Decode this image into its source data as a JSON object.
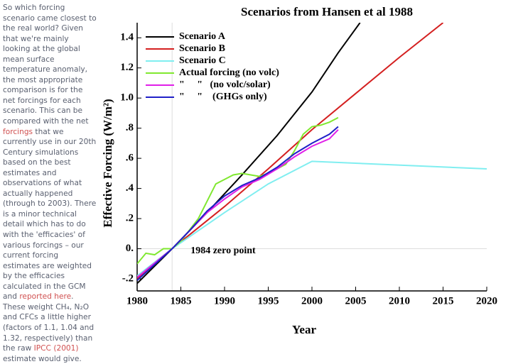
{
  "sidebar": {
    "segments": [
      {
        "text": "So which forcing scenario came closest to the real world? Given that we're mainly looking at the global mean surface temperature anomaly, the most appropriate comparison is for the net forcings for each scenario. This can be compared with the net "
      },
      {
        "text": "forcings",
        "link": true
      },
      {
        "text": " that we currently use in our 20th Century simulations based on the best estimates and observations of what actually happened (through to 2003). There is a minor technical detail which has to do with the 'efficacies' of various forcings – our current forcing estimates are weighted by the efficacies calculated in the GCM and "
      },
      {
        "text": "reported here",
        "link": true
      },
      {
        "text": ". These weight CH₄, N₂O and CFCs a little higher (factors of 1.1, 1.04 and 1.32, respectively) than the raw "
      },
      {
        "text": "IPCC (2001)",
        "link": true
      },
      {
        "text": " estimate would give."
      }
    ]
  },
  "chart_data": {
    "type": "line",
    "title": "Scenarios from Hansen et al 1988",
    "xlabel": "Year",
    "ylabel": "Effective Forcing (W/m²)",
    "xlim": [
      1980,
      2020
    ],
    "xticks": [
      1980,
      1985,
      1990,
      1995,
      2000,
      2005,
      2010,
      2015,
      2020
    ],
    "ylim": [
      -0.28,
      1.5
    ],
    "yticks": [
      {
        "value": -0.2,
        "label": "-.2"
      },
      {
        "value": 0,
        "label": "0."
      },
      {
        "value": 0.2,
        "label": ".2"
      },
      {
        "value": 0.4,
        "label": ".4"
      },
      {
        "value": 0.6,
        "label": ".6"
      },
      {
        "value": 0.8,
        "label": ".8"
      },
      {
        "value": 1.0,
        "label": "1.0"
      },
      1.2,
      1.4
    ],
    "annotation": {
      "text": "1984 zero point",
      "x": 1984
    },
    "legend": "upper left",
    "series": [
      {
        "name": "Scenario A",
        "color": "#000000",
        "x": [
          1980,
          1984,
          1988,
          1992,
          1996,
          2000,
          2003,
          2005.5
        ],
        "values": [
          -0.23,
          0,
          0.24,
          0.49,
          0.75,
          1.04,
          1.3,
          1.5
        ]
      },
      {
        "name": "Scenario B",
        "color": "#d42020",
        "x": [
          1980,
          1984,
          1990,
          1995,
          2000,
          2005,
          2010,
          2015
        ],
        "values": [
          -0.2,
          0,
          0.28,
          0.53,
          0.79,
          1.03,
          1.27,
          1.5
        ]
      },
      {
        "name": "Scenario C",
        "color": "#80eef0",
        "x": [
          1980,
          1984,
          1990,
          1995,
          2000,
          2020
        ],
        "values": [
          -0.18,
          0,
          0.24,
          0.43,
          0.58,
          0.53
        ]
      },
      {
        "name": "Actual forcing (no volc)",
        "color": "#80e830",
        "x": [
          1980,
          1981,
          1982,
          1983,
          1984,
          1985,
          1987,
          1989,
          1990,
          1991,
          1992,
          1993,
          1994,
          1995,
          1996,
          1997,
          1998,
          1999,
          2000,
          2001,
          2002,
          2003
        ],
        "values": [
          -0.1,
          -0.03,
          -0.04,
          0,
          0,
          0.05,
          0.2,
          0.43,
          0.46,
          0.49,
          0.5,
          0.49,
          0.48,
          0.5,
          0.53,
          0.56,
          0.65,
          0.76,
          0.81,
          0.82,
          0.84,
          0.87
        ]
      },
      {
        "name": "\"     \"   (no volc/solar)",
        "color": "#e020e8",
        "x": [
          1980,
          1984,
          1986,
          1988,
          1990,
          1992,
          1994,
          1996,
          1998,
          2000,
          2002,
          2003
        ],
        "values": [
          -0.19,
          0,
          0.12,
          0.24,
          0.33,
          0.41,
          0.46,
          0.53,
          0.61,
          0.68,
          0.73,
          0.79
        ]
      },
      {
        "name": "\"     \"    (GHGs only)",
        "color": "#2020c8",
        "x": [
          1980,
          1984,
          1986,
          1988,
          1990,
          1992,
          1994,
          1996,
          1998,
          2000,
          2002,
          2003
        ],
        "values": [
          -0.21,
          0,
          0.12,
          0.25,
          0.35,
          0.42,
          0.47,
          0.54,
          0.63,
          0.7,
          0.76,
          0.81
        ]
      }
    ]
  }
}
